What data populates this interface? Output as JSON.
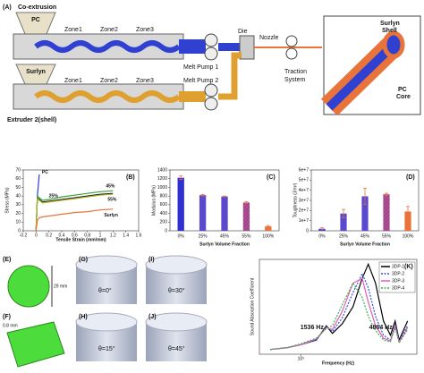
{
  "diagram": {
    "panel": "(A)",
    "title": "Co-extrusion",
    "hopper1": "PC",
    "hopper2": "Surlyn",
    "zones1": [
      "Zone1",
      "Zone2",
      "Zone3"
    ],
    "zones2": [
      "Zone1",
      "Zone2",
      "Zone3"
    ],
    "pump1": "Melt Pump 1",
    "pump2": "Melt Pump 2",
    "die": "Die",
    "nozzle": "Nozzle",
    "traction": [
      "Traction",
      "System"
    ],
    "shell": [
      "Surlyn",
      "Shell"
    ],
    "core": [
      "PC",
      "Core"
    ],
    "extruder2": "Extruder 2(shell)"
  },
  "chart_data": [
    {
      "type": "line",
      "panel": "(B)",
      "x_label": "Tensile Strain (mm/mm)",
      "y_label": "Stress (MPa)",
      "x": [
        0,
        0.02,
        0.05,
        0.1,
        0.2,
        0.4,
        0.6,
        0.8,
        1,
        1.2
      ],
      "xlim": [
        -0.2,
        1.6
      ],
      "xticks": [
        -0.2,
        0,
        0.2,
        0.4,
        0.6,
        0.8,
        1,
        1.2,
        1.4,
        1.6
      ],
      "ylim": [
        0,
        70
      ],
      "yticks": [
        0,
        10,
        20,
        30,
        40,
        50,
        60,
        70
      ],
      "series": [
        {
          "name": "PC",
          "color": "#2b3bd8",
          "values": [
            0,
            40,
            65,
            null,
            null,
            null,
            null,
            null,
            null,
            null
          ]
        },
        {
          "name": "25%",
          "color": "#222222",
          "values": [
            0,
            38,
            36,
            33,
            34,
            36,
            38,
            40,
            42,
            43
          ]
        },
        {
          "name": "45%",
          "color": "#3aa040",
          "values": [
            0,
            40,
            38,
            35,
            36,
            39,
            41,
            43,
            45,
            46
          ]
        },
        {
          "name": "55%",
          "color": "#b5b52a",
          "values": [
            0,
            37,
            35,
            32,
            33,
            35,
            37,
            39,
            41,
            42
          ]
        },
        {
          "name": "Surlyn",
          "color": "#e8743b",
          "values": [
            0,
            12,
            15,
            16,
            17,
            19,
            21,
            22,
            24,
            25
          ]
        }
      ]
    },
    {
      "type": "bar",
      "panel": "(C)",
      "x_label": "Surlyn Volume Fraction",
      "y_label": "Modulus (MPa)",
      "categories": [
        "0%",
        "25%",
        "45%",
        "55%",
        "100%"
      ],
      "values": [
        1220,
        820,
        790,
        650,
        100
      ],
      "errors": [
        40,
        15,
        10,
        15,
        20
      ],
      "colors": [
        "#3030d0",
        "#5a48cf",
        "#5a48cf",
        "#c04a7a",
        "#e8743b"
      ],
      "hatched": [
        false,
        false,
        false,
        true,
        false
      ],
      "error_color": "#e8743b",
      "ylim": [
        0,
        1400
      ],
      "yticks": [
        0,
        200,
        400,
        600,
        800,
        1000,
        1200,
        1400
      ]
    },
    {
      "type": "bar",
      "panel": "(D)",
      "x_label": "Surlyn Volume Fraction",
      "y_label": "Toughness (J/m³)",
      "categories": [
        "0%",
        "25%",
        "45%",
        "55%",
        "100%"
      ],
      "values": [
        2000000,
        17000000,
        34000000,
        36000000,
        19000000
      ],
      "errors": [
        1000000,
        4000000,
        8000000,
        1000000,
        5000000
      ],
      "colors": [
        "#3030d0",
        "#5a48cf",
        "#5a48cf",
        "#c04a7a",
        "#e8743b"
      ],
      "hatched": [
        false,
        false,
        false,
        true,
        false
      ],
      "error_color": "#e8743b",
      "ylim": [
        0,
        60000000
      ],
      "yticks": [
        0,
        {
          "value": 10000000,
          "label": "1e+7"
        },
        {
          "value": 20000000,
          "label": "2e+7"
        },
        {
          "value": 30000000,
          "label": "3e+7"
        },
        {
          "value": 40000000,
          "label": "4e+7"
        },
        {
          "value": 50000000,
          "label": "5e+7"
        },
        {
          "value": 60000000,
          "label": "6e+7"
        }
      ]
    },
    {
      "type": "line",
      "panel": "(K)",
      "x_label": "Frequency (Hz)",
      "y_label": "Sound Absorption Coefficient",
      "log_x": true,
      "x": [
        600,
        800,
        1000,
        1300,
        1536,
        1700,
        2000,
        2400,
        2800,
        3100,
        3500,
        4000,
        4500,
        4864,
        5200,
        6000
      ],
      "xlim": [
        500,
        7000
      ],
      "xticks": [
        {
          "value": 1000,
          "label": "10³"
        }
      ],
      "ylim": [
        0,
        1
      ],
      "annotations": [
        {
          "text": "1536 Hz",
          "x": 1536
        },
        {
          "text": "4864 Hz",
          "x": 4864
        }
      ],
      "annotation_color": "#e8743b",
      "series": [
        {
          "name": "3DP-1",
          "color": "#000000",
          "dash": false,
          "values": [
            0.05,
            0.07,
            0.1,
            0.15,
            0.3,
            0.22,
            0.32,
            0.5,
            0.8,
            0.95,
            0.75,
            0.35,
            0.2,
            0.35,
            0.15,
            0.35
          ]
        },
        {
          "name": "3DP-2",
          "color": "#3050e0",
          "dash": true,
          "values": [
            0.05,
            0.07,
            0.1,
            0.15,
            0.29,
            0.24,
            0.38,
            0.65,
            0.85,
            0.7,
            0.4,
            0.2,
            0.15,
            0.32,
            0.14,
            0.3
          ]
        },
        {
          "name": "3DP-3",
          "color": "#e060b0",
          "dash": false,
          "values": [
            0.05,
            0.07,
            0.1,
            0.16,
            0.28,
            0.26,
            0.45,
            0.75,
            0.8,
            0.55,
            0.3,
            0.17,
            0.14,
            0.3,
            0.13,
            0.28
          ]
        },
        {
          "name": "3DP-4",
          "color": "#40b050",
          "dash": true,
          "values": [
            0.05,
            0.07,
            0.11,
            0.17,
            0.27,
            0.3,
            0.52,
            0.75,
            0.6,
            0.4,
            0.25,
            0.15,
            0.13,
            0.28,
            0.12,
            0.26
          ]
        }
      ]
    }
  ],
  "images": {
    "E": "(E)",
    "e_size": "29 mm",
    "F": "(F)",
    "f_size": "0.8 mm",
    "G": "(G)",
    "g_angle": "θ=0°",
    "I": "(I)",
    "i_angle": "θ=30°",
    "H": "(H)",
    "h_angle": "θ=15°",
    "J": "(J)",
    "j_angle": "θ=45°"
  }
}
